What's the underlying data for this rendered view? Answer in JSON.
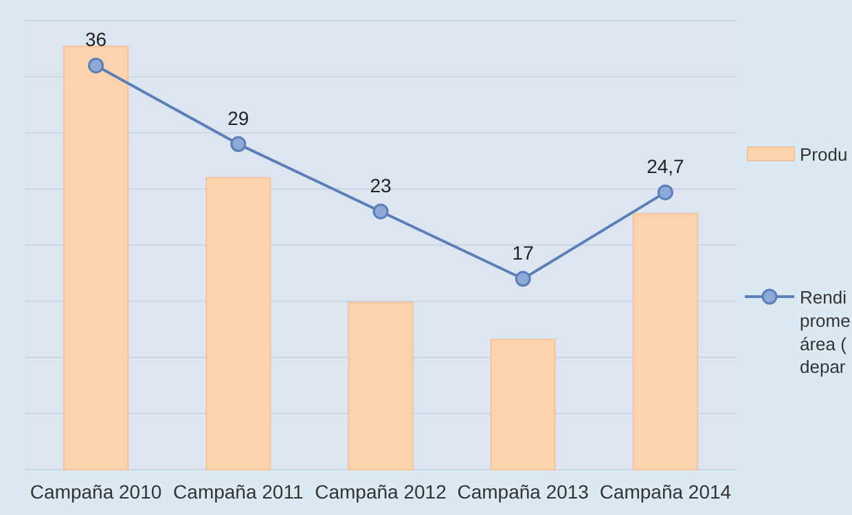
{
  "chart_data": {
    "type": "bar",
    "categories": [
      "Campaña 2010",
      "Campaña 2011",
      "Campaña 2012",
      "Campaña 2013",
      "Campaña 2014"
    ],
    "series": [
      {
        "name": "Produ",
        "color": "#fdd3ae",
        "values": [
          37.7,
          26,
          14.9,
          11.6,
          22.8
        ]
      },
      {
        "name": "Rendi\nprome\nárea (\ndepar",
        "type": "line",
        "color": "#5a7fb8",
        "values": [
          36,
          29,
          23,
          17,
          24.7
        ],
        "value_labels": [
          "36",
          "29",
          "23",
          "17",
          "24,7"
        ],
        "marker": "circle",
        "line_style": "solid"
      }
    ],
    "ylim": [
      0,
      40
    ],
    "yticks": [
      {
        "value": 0,
        "label": null
      },
      {
        "value": 5,
        "label": null
      },
      {
        "value": 10,
        "label": null
      },
      {
        "value": 15,
        "label": null
      },
      {
        "value": 20,
        "label": null
      },
      {
        "value": 25,
        "label": null
      },
      {
        "value": 30,
        "label": null
      },
      {
        "value": 35,
        "label": null
      },
      {
        "value": 40,
        "label": null
      }
    ],
    "grid": "y",
    "legend": "right"
  }
}
